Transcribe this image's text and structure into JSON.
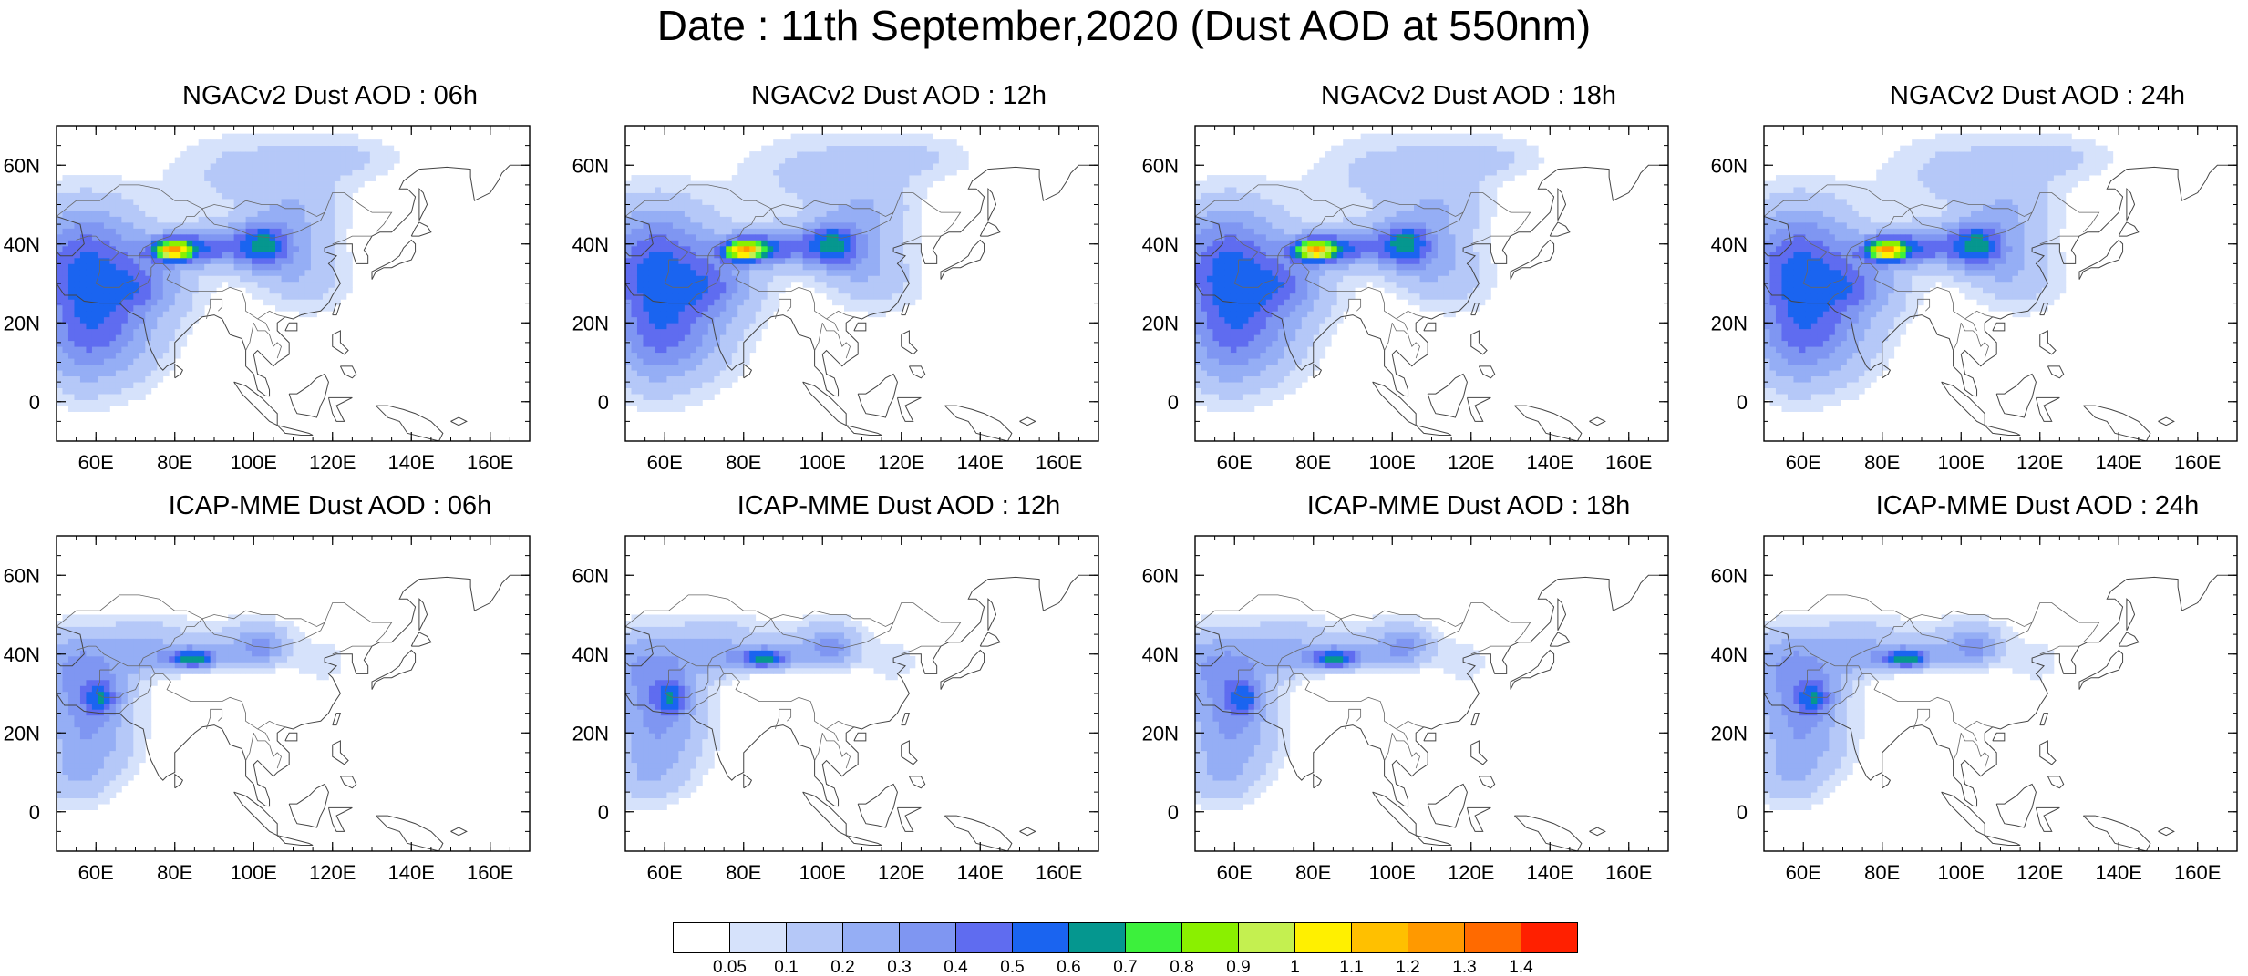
{
  "title": "Date : 11th September,2020 (Dust AOD at 550nm)",
  "panels": [
    {
      "title": "NGACv2 Dust AOD : 06h",
      "model": "ngac",
      "hour": 6
    },
    {
      "title": "NGACv2 Dust AOD : 12h",
      "model": "ngac",
      "hour": 12
    },
    {
      "title": "NGACv2 Dust AOD : 18h",
      "model": "ngac",
      "hour": 18
    },
    {
      "title": "NGACv2 Dust AOD : 24h",
      "model": "ngac",
      "hour": 24
    },
    {
      "title": "ICAP-MME Dust AOD : 06h",
      "model": "icap",
      "hour": 6
    },
    {
      "title": "ICAP-MME Dust AOD : 12h",
      "model": "icap",
      "hour": 12
    },
    {
      "title": "ICAP-MME Dust AOD : 18h",
      "model": "icap",
      "hour": 18
    },
    {
      "title": "ICAP-MME Dust AOD : 24h",
      "model": "icap",
      "hour": 24
    }
  ],
  "map_extent": {
    "lon_range": [
      50,
      170
    ],
    "lat_range": [
      -10,
      70
    ]
  },
  "x_ticks": [
    {
      "value": 60,
      "label": "60E"
    },
    {
      "value": 80,
      "label": "80E"
    },
    {
      "value": 100,
      "label": "100E"
    },
    {
      "value": 120,
      "label": "120E"
    },
    {
      "value": 140,
      "label": "140E"
    },
    {
      "value": 160,
      "label": "160E"
    }
  ],
  "y_ticks": [
    {
      "value": 0,
      "label": "0"
    },
    {
      "value": 20,
      "label": "20N"
    },
    {
      "value": 40,
      "label": "40N"
    },
    {
      "value": 60,
      "label": "60N"
    }
  ],
  "colorbar": {
    "labels": [
      "0.05",
      "0.1",
      "0.2",
      "0.3",
      "0.4",
      "0.5",
      "0.6",
      "0.7",
      "0.8",
      "0.9",
      "1",
      "1.1",
      "1.2",
      "1.3",
      "1.4"
    ],
    "colors": [
      "#ffffff",
      "#d6e2fb",
      "#b5c8f8",
      "#95aef5",
      "#7f96f2",
      "#5f6cf0",
      "#1a64f0",
      "#05978f",
      "#3cf03c",
      "#8af000",
      "#c4f050",
      "#fff000",
      "#ffc000",
      "#ff9900",
      "#ff6a00",
      "#ff2000"
    ]
  }
}
